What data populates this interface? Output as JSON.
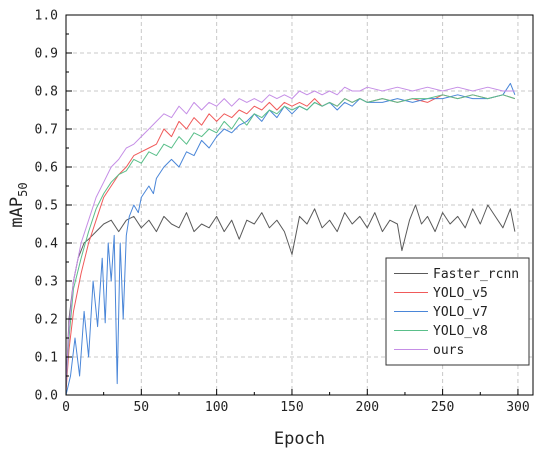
{
  "chart_data": {
    "type": "line",
    "xlabel": "Epoch",
    "ylabel": "mAP",
    "ylabel_subscript": "50",
    "xlim": [
      0,
      310
    ],
    "ylim": [
      0,
      1.0
    ],
    "x_ticks": [
      "0",
      "50",
      "100",
      "150",
      "200",
      "250",
      "300"
    ],
    "y_ticks": [
      "0.0",
      "0.1",
      "0.2",
      "0.3",
      "0.4",
      "0.5",
      "0.6",
      "0.7",
      "0.8",
      "0.9",
      "1.0"
    ],
    "grid": true,
    "legend_position": "bottom-right",
    "series": [
      {
        "name": "Faster_rcnn",
        "color": "#5a5a5a",
        "points": [
          [
            0,
            0.02
          ],
          [
            2,
            0.2
          ],
          [
            5,
            0.3
          ],
          [
            8,
            0.36
          ],
          [
            12,
            0.4
          ],
          [
            15,
            0.41
          ],
          [
            20,
            0.43
          ],
          [
            25,
            0.45
          ],
          [
            30,
            0.46
          ],
          [
            35,
            0.43
          ],
          [
            40,
            0.46
          ],
          [
            45,
            0.47
          ],
          [
            50,
            0.44
          ],
          [
            55,
            0.46
          ],
          [
            60,
            0.43
          ],
          [
            65,
            0.47
          ],
          [
            70,
            0.45
          ],
          [
            75,
            0.44
          ],
          [
            80,
            0.48
          ],
          [
            85,
            0.43
          ],
          [
            90,
            0.45
          ],
          [
            95,
            0.44
          ],
          [
            100,
            0.47
          ],
          [
            105,
            0.43
          ],
          [
            110,
            0.46
          ],
          [
            115,
            0.41
          ],
          [
            120,
            0.46
          ],
          [
            125,
            0.45
          ],
          [
            130,
            0.48
          ],
          [
            135,
            0.44
          ],
          [
            140,
            0.46
          ],
          [
            145,
            0.43
          ],
          [
            150,
            0.37
          ],
          [
            155,
            0.47
          ],
          [
            160,
            0.45
          ],
          [
            165,
            0.49
          ],
          [
            170,
            0.44
          ],
          [
            175,
            0.46
          ],
          [
            180,
            0.43
          ],
          [
            185,
            0.48
          ],
          [
            190,
            0.45
          ],
          [
            195,
            0.47
          ],
          [
            200,
            0.44
          ],
          [
            205,
            0.48
          ],
          [
            210,
            0.43
          ],
          [
            215,
            0.46
          ],
          [
            220,
            0.45
          ],
          [
            223,
            0.38
          ],
          [
            228,
            0.46
          ],
          [
            232,
            0.5
          ],
          [
            236,
            0.45
          ],
          [
            240,
            0.47
          ],
          [
            245,
            0.43
          ],
          [
            250,
            0.48
          ],
          [
            255,
            0.45
          ],
          [
            260,
            0.47
          ],
          [
            265,
            0.44
          ],
          [
            270,
            0.49
          ],
          [
            275,
            0.45
          ],
          [
            280,
            0.5
          ],
          [
            285,
            0.47
          ],
          [
            290,
            0.44
          ],
          [
            295,
            0.49
          ],
          [
            298,
            0.43
          ]
        ]
      },
      {
        "name": "YOLO_v5",
        "color": "#f05a5a",
        "points": [
          [
            0,
            0.01
          ],
          [
            2,
            0.12
          ],
          [
            5,
            0.22
          ],
          [
            10,
            0.32
          ],
          [
            15,
            0.4
          ],
          [
            20,
            0.46
          ],
          [
            25,
            0.52
          ],
          [
            30,
            0.55
          ],
          [
            35,
            0.58
          ],
          [
            40,
            0.6
          ],
          [
            45,
            0.63
          ],
          [
            50,
            0.64
          ],
          [
            55,
            0.65
          ],
          [
            60,
            0.66
          ],
          [
            65,
            0.7
          ],
          [
            70,
            0.68
          ],
          [
            75,
            0.72
          ],
          [
            80,
            0.7
          ],
          [
            85,
            0.73
          ],
          [
            90,
            0.71
          ],
          [
            95,
            0.74
          ],
          [
            100,
            0.72
          ],
          [
            105,
            0.74
          ],
          [
            110,
            0.73
          ],
          [
            115,
            0.75
          ],
          [
            120,
            0.74
          ],
          [
            125,
            0.76
          ],
          [
            130,
            0.75
          ],
          [
            135,
            0.77
          ],
          [
            140,
            0.75
          ],
          [
            145,
            0.77
          ],
          [
            150,
            0.76
          ],
          [
            155,
            0.77
          ],
          [
            160,
            0.76
          ],
          [
            165,
            0.78
          ],
          [
            170,
            0.76
          ],
          [
            175,
            0.77
          ],
          [
            180,
            0.76
          ],
          [
            185,
            0.78
          ],
          [
            190,
            0.77
          ],
          [
            195,
            0.78
          ],
          [
            200,
            0.77
          ],
          [
            210,
            0.78
          ],
          [
            220,
            0.77
          ],
          [
            230,
            0.78
          ],
          [
            240,
            0.77
          ],
          [
            250,
            0.79
          ],
          [
            260,
            0.78
          ],
          [
            270,
            0.79
          ],
          [
            280,
            0.78
          ],
          [
            290,
            0.79
          ],
          [
            298,
            0.78
          ]
        ]
      },
      {
        "name": "YOLO_v7",
        "color": "#4a86d8",
        "points": [
          [
            0,
            0.0
          ],
          [
            3,
            0.05
          ],
          [
            6,
            0.15
          ],
          [
            9,
            0.05
          ],
          [
            12,
            0.22
          ],
          [
            15,
            0.1
          ],
          [
            18,
            0.3
          ],
          [
            21,
            0.18
          ],
          [
            24,
            0.36
          ],
          [
            26,
            0.19
          ],
          [
            28,
            0.4
          ],
          [
            30,
            0.3
          ],
          [
            32,
            0.42
          ],
          [
            34,
            0.03
          ],
          [
            36,
            0.4
          ],
          [
            38,
            0.2
          ],
          [
            40,
            0.42
          ],
          [
            42,
            0.47
          ],
          [
            45,
            0.5
          ],
          [
            48,
            0.48
          ],
          [
            50,
            0.52
          ],
          [
            55,
            0.55
          ],
          [
            58,
            0.53
          ],
          [
            60,
            0.57
          ],
          [
            65,
            0.6
          ],
          [
            70,
            0.62
          ],
          [
            75,
            0.6
          ],
          [
            80,
            0.64
          ],
          [
            85,
            0.63
          ],
          [
            90,
            0.67
          ],
          [
            95,
            0.65
          ],
          [
            100,
            0.68
          ],
          [
            105,
            0.7
          ],
          [
            110,
            0.69
          ],
          [
            115,
            0.71
          ],
          [
            120,
            0.72
          ],
          [
            125,
            0.74
          ],
          [
            130,
            0.72
          ],
          [
            135,
            0.75
          ],
          [
            140,
            0.73
          ],
          [
            145,
            0.76
          ],
          [
            150,
            0.74
          ],
          [
            155,
            0.76
          ],
          [
            160,
            0.75
          ],
          [
            165,
            0.77
          ],
          [
            170,
            0.76
          ],
          [
            175,
            0.77
          ],
          [
            180,
            0.75
          ],
          [
            185,
            0.77
          ],
          [
            190,
            0.76
          ],
          [
            195,
            0.78
          ],
          [
            200,
            0.77
          ],
          [
            210,
            0.77
          ],
          [
            220,
            0.78
          ],
          [
            230,
            0.77
          ],
          [
            240,
            0.78
          ],
          [
            250,
            0.78
          ],
          [
            260,
            0.79
          ],
          [
            270,
            0.78
          ],
          [
            280,
            0.78
          ],
          [
            290,
            0.79
          ],
          [
            295,
            0.82
          ],
          [
            298,
            0.79
          ]
        ]
      },
      {
        "name": "YOLO_v8",
        "color": "#5abf8a",
        "points": [
          [
            0,
            0.02
          ],
          [
            2,
            0.15
          ],
          [
            5,
            0.28
          ],
          [
            10,
            0.36
          ],
          [
            15,
            0.43
          ],
          [
            20,
            0.49
          ],
          [
            25,
            0.53
          ],
          [
            30,
            0.56
          ],
          [
            35,
            0.58
          ],
          [
            40,
            0.59
          ],
          [
            45,
            0.62
          ],
          [
            50,
            0.61
          ],
          [
            55,
            0.64
          ],
          [
            60,
            0.63
          ],
          [
            65,
            0.66
          ],
          [
            70,
            0.65
          ],
          [
            75,
            0.68
          ],
          [
            80,
            0.66
          ],
          [
            85,
            0.69
          ],
          [
            90,
            0.68
          ],
          [
            95,
            0.7
          ],
          [
            100,
            0.69
          ],
          [
            105,
            0.72
          ],
          [
            110,
            0.7
          ],
          [
            115,
            0.73
          ],
          [
            120,
            0.71
          ],
          [
            125,
            0.74
          ],
          [
            130,
            0.73
          ],
          [
            135,
            0.75
          ],
          [
            140,
            0.74
          ],
          [
            145,
            0.76
          ],
          [
            150,
            0.75
          ],
          [
            155,
            0.76
          ],
          [
            160,
            0.75
          ],
          [
            165,
            0.77
          ],
          [
            170,
            0.76
          ],
          [
            175,
            0.77
          ],
          [
            180,
            0.76
          ],
          [
            185,
            0.78
          ],
          [
            190,
            0.77
          ],
          [
            195,
            0.78
          ],
          [
            200,
            0.77
          ],
          [
            210,
            0.78
          ],
          [
            220,
            0.77
          ],
          [
            230,
            0.78
          ],
          [
            240,
            0.78
          ],
          [
            250,
            0.79
          ],
          [
            260,
            0.78
          ],
          [
            270,
            0.79
          ],
          [
            280,
            0.78
          ],
          [
            290,
            0.79
          ],
          [
            298,
            0.78
          ]
        ]
      },
      {
        "name": "ours",
        "color": "#c58ee6",
        "points": [
          [
            0,
            0.02
          ],
          [
            2,
            0.18
          ],
          [
            5,
            0.3
          ],
          [
            10,
            0.4
          ],
          [
            15,
            0.46
          ],
          [
            20,
            0.52
          ],
          [
            25,
            0.56
          ],
          [
            30,
            0.6
          ],
          [
            35,
            0.62
          ],
          [
            40,
            0.65
          ],
          [
            45,
            0.66
          ],
          [
            50,
            0.68
          ],
          [
            55,
            0.7
          ],
          [
            60,
            0.72
          ],
          [
            65,
            0.74
          ],
          [
            70,
            0.73
          ],
          [
            75,
            0.76
          ],
          [
            80,
            0.74
          ],
          [
            85,
            0.77
          ],
          [
            90,
            0.75
          ],
          [
            95,
            0.77
          ],
          [
            100,
            0.76
          ],
          [
            105,
            0.78
          ],
          [
            110,
            0.76
          ],
          [
            115,
            0.78
          ],
          [
            120,
            0.77
          ],
          [
            125,
            0.78
          ],
          [
            130,
            0.77
          ],
          [
            135,
            0.79
          ],
          [
            140,
            0.78
          ],
          [
            145,
            0.79
          ],
          [
            150,
            0.78
          ],
          [
            155,
            0.8
          ],
          [
            160,
            0.79
          ],
          [
            165,
            0.8
          ],
          [
            170,
            0.79
          ],
          [
            175,
            0.8
          ],
          [
            180,
            0.79
          ],
          [
            185,
            0.81
          ],
          [
            190,
            0.8
          ],
          [
            195,
            0.8
          ],
          [
            200,
            0.81
          ],
          [
            210,
            0.8
          ],
          [
            220,
            0.81
          ],
          [
            230,
            0.8
          ],
          [
            240,
            0.81
          ],
          [
            250,
            0.8
          ],
          [
            260,
            0.81
          ],
          [
            270,
            0.8
          ],
          [
            280,
            0.81
          ],
          [
            290,
            0.8
          ],
          [
            298,
            0.8
          ]
        ]
      }
    ]
  }
}
